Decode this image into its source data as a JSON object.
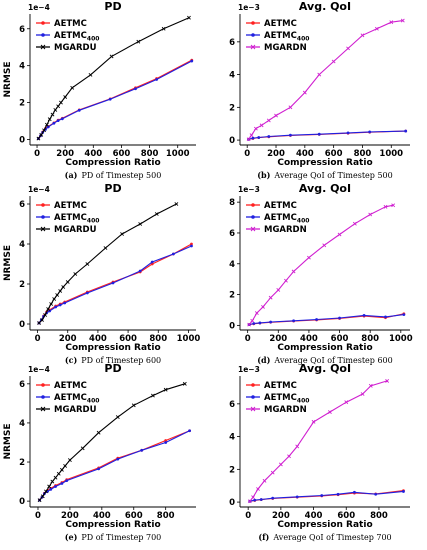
{
  "colors": {
    "aetmc": "#ff2020",
    "aetmc400": "#2020e0",
    "mgard_pd": "#000000",
    "mgard_qoi": "#d020d0"
  },
  "chart_data": [
    {
      "type": "line",
      "title": "PD",
      "multiplier": "1e−4",
      "xlabel": "Compression Ratio",
      "ylabel": "NRMSE",
      "caption_letter": "(a)",
      "caption": "PD of Timestep 500",
      "xlim": [
        -50,
        1130
      ],
      "ylim": [
        -0.3,
        6.8
      ],
      "xticks": [
        0,
        200,
        400,
        600,
        800,
        1000
      ],
      "yticks": [
        0,
        2,
        4,
        6
      ],
      "series": [
        {
          "name": "AETMC",
          "color_key": "aetmc",
          "marker": "dot",
          "x": [
            10,
            25,
            40,
            60,
            80,
            120,
            150,
            180,
            300,
            520,
            700,
            850,
            1100
          ],
          "y": [
            0.05,
            0.2,
            0.4,
            0.6,
            0.7,
            0.9,
            1.05,
            1.15,
            1.6,
            2.2,
            2.8,
            3.3,
            4.3
          ]
        },
        {
          "name": "AETMC",
          "subscript": "400",
          "color_key": "aetmc400",
          "marker": "dot",
          "x": [
            10,
            25,
            40,
            60,
            80,
            120,
            150,
            180,
            300,
            520,
            700,
            850,
            1100
          ],
          "y": [
            0.05,
            0.2,
            0.38,
            0.55,
            0.68,
            0.88,
            1.02,
            1.12,
            1.58,
            2.18,
            2.75,
            3.25,
            4.25
          ]
        },
        {
          "name": "MGARDU",
          "color_key": "mgard_pd",
          "marker": "x",
          "x": [
            10,
            30,
            50,
            70,
            90,
            110,
            130,
            150,
            170,
            200,
            250,
            380,
            530,
            720,
            900,
            1080
          ],
          "y": [
            0.05,
            0.25,
            0.5,
            0.8,
            1.1,
            1.35,
            1.6,
            1.8,
            2.0,
            2.3,
            2.8,
            3.5,
            4.5,
            5.3,
            6.0,
            6.6
          ]
        }
      ]
    },
    {
      "type": "line",
      "title": "Avg. QoI",
      "multiplier": "1e−3",
      "xlabel": "Compression Ratio",
      "ylabel": "",
      "caption_letter": "(b)",
      "caption": "Average QoI of Timestep 500",
      "xlim": [
        -50,
        1130
      ],
      "ylim": [
        -0.3,
        7.7
      ],
      "xticks": [
        0,
        200,
        400,
        600,
        800,
        1000
      ],
      "yticks": [
        0,
        2,
        4,
        6
      ],
      "series": [
        {
          "name": "AETMC",
          "color_key": "aetmc",
          "marker": "dot",
          "x": [
            10,
            40,
            80,
            150,
            300,
            500,
            700,
            850,
            1100
          ],
          "y": [
            0.05,
            0.1,
            0.15,
            0.2,
            0.28,
            0.35,
            0.42,
            0.48,
            0.55
          ]
        },
        {
          "name": "AETMC",
          "subscript": "400",
          "color_key": "aetmc400",
          "marker": "dot",
          "x": [
            10,
            40,
            80,
            150,
            300,
            500,
            700,
            850,
            1100
          ],
          "y": [
            0.05,
            0.12,
            0.16,
            0.22,
            0.3,
            0.36,
            0.44,
            0.5,
            0.55
          ]
        },
        {
          "name": "MGARDN",
          "color_key": "mgard_qoi",
          "marker": "x",
          "x": [
            10,
            30,
            60,
            100,
            150,
            200,
            300,
            400,
            500,
            600,
            700,
            800,
            900,
            1000,
            1080
          ],
          "y": [
            0.05,
            0.3,
            0.7,
            0.9,
            1.2,
            1.5,
            2.0,
            2.9,
            4.0,
            4.8,
            5.6,
            6.4,
            6.8,
            7.2,
            7.3
          ]
        }
      ]
    },
    {
      "type": "line",
      "title": "PD",
      "multiplier": "1e−4",
      "xlabel": "Compression Ratio",
      "ylabel": "NRMSE",
      "caption_letter": "(c)",
      "caption": "PD of Timestep 600",
      "xlim": [
        -50,
        1050
      ],
      "ylim": [
        -0.3,
        6.4
      ],
      "xticks": [
        0,
        200,
        400,
        600,
        800,
        1000
      ],
      "yticks": [
        0,
        2,
        4,
        6
      ],
      "series": [
        {
          "name": "AETMC",
          "color_key": "aetmc",
          "marker": "dot",
          "x": [
            10,
            25,
            40,
            60,
            80,
            120,
            150,
            180,
            330,
            500,
            680,
            760,
            900,
            1020
          ],
          "y": [
            0.05,
            0.2,
            0.4,
            0.6,
            0.7,
            0.9,
            1.0,
            1.1,
            1.6,
            2.1,
            2.6,
            3.0,
            3.5,
            4.0
          ]
        },
        {
          "name": "AETMC",
          "subscript": "400",
          "color_key": "aetmc400",
          "marker": "dot",
          "x": [
            10,
            25,
            40,
            60,
            80,
            120,
            150,
            180,
            330,
            500,
            680,
            760,
            900,
            1020
          ],
          "y": [
            0.05,
            0.2,
            0.38,
            0.55,
            0.65,
            0.85,
            0.95,
            1.05,
            1.55,
            2.05,
            2.65,
            3.1,
            3.5,
            3.9
          ]
        },
        {
          "name": "MGARDU",
          "color_key": "mgard_pd",
          "marker": "x",
          "x": [
            10,
            30,
            50,
            70,
            90,
            110,
            130,
            150,
            170,
            200,
            250,
            330,
            450,
            560,
            680,
            790,
            920
          ],
          "y": [
            0.05,
            0.2,
            0.45,
            0.75,
            1.0,
            1.25,
            1.45,
            1.65,
            1.85,
            2.1,
            2.5,
            3.0,
            3.8,
            4.5,
            5.0,
            5.5,
            6.0
          ]
        }
      ]
    },
    {
      "type": "line",
      "title": "Avg. QoI",
      "multiplier": "1e−3",
      "xlabel": "Compression Ratio",
      "ylabel": "",
      "caption_letter": "(d)",
      "caption": "Average QoI of Timestep 600",
      "xlim": [
        -50,
        1060
      ],
      "ylim": [
        -0.3,
        8.4
      ],
      "xticks": [
        0,
        200,
        400,
        600,
        800,
        1000
      ],
      "yticks": [
        0,
        2,
        4,
        6,
        8
      ],
      "series": [
        {
          "name": "AETMC",
          "color_key": "aetmc",
          "marker": "dot",
          "x": [
            10,
            40,
            80,
            150,
            300,
            450,
            600,
            760,
            900,
            1020
          ],
          "y": [
            0.05,
            0.1,
            0.15,
            0.2,
            0.28,
            0.35,
            0.45,
            0.6,
            0.5,
            0.75
          ]
        },
        {
          "name": "AETMC",
          "subscript": "400",
          "color_key": "aetmc400",
          "marker": "dot",
          "x": [
            10,
            40,
            80,
            150,
            300,
            450,
            600,
            760,
            900,
            1020
          ],
          "y": [
            0.05,
            0.12,
            0.16,
            0.22,
            0.3,
            0.38,
            0.48,
            0.65,
            0.55,
            0.7
          ]
        },
        {
          "name": "MGARDN",
          "color_key": "mgard_qoi",
          "marker": "x",
          "x": [
            10,
            30,
            60,
            100,
            150,
            200,
            250,
            300,
            400,
            500,
            600,
            700,
            800,
            900,
            950
          ],
          "y": [
            0.05,
            0.3,
            0.8,
            1.2,
            1.8,
            2.3,
            2.9,
            3.5,
            4.4,
            5.2,
            5.9,
            6.6,
            7.2,
            7.7,
            7.8
          ]
        }
      ]
    },
    {
      "type": "line",
      "title": "PD",
      "multiplier": "1e−4",
      "xlabel": "Compression Ratio",
      "ylabel": "NRMSE",
      "caption_letter": "(e)",
      "caption": "PD of Timestep 700",
      "xlim": [
        -50,
        990
      ],
      "ylim": [
        -0.3,
        6.4
      ],
      "xticks": [
        0,
        200,
        400,
        600,
        800
      ],
      "yticks": [
        0,
        2,
        4,
        6
      ],
      "series": [
        {
          "name": "AETMC",
          "color_key": "aetmc",
          "marker": "dot",
          "x": [
            10,
            25,
            40,
            60,
            80,
            110,
            150,
            180,
            380,
            500,
            650,
            800,
            950
          ],
          "y": [
            0.05,
            0.2,
            0.4,
            0.55,
            0.65,
            0.8,
            0.95,
            1.1,
            1.7,
            2.2,
            2.6,
            3.1,
            3.6
          ]
        },
        {
          "name": "AETMC",
          "subscript": "400",
          "color_key": "aetmc400",
          "marker": "dot",
          "x": [
            10,
            25,
            40,
            60,
            80,
            110,
            150,
            180,
            380,
            500,
            650,
            800,
            950
          ],
          "y": [
            0.05,
            0.2,
            0.38,
            0.5,
            0.6,
            0.75,
            0.9,
            1.05,
            1.65,
            2.15,
            2.6,
            3.0,
            3.6
          ]
        },
        {
          "name": "MGARDU",
          "color_key": "mgard_pd",
          "marker": "x",
          "x": [
            10,
            30,
            50,
            70,
            90,
            110,
            130,
            150,
            170,
            200,
            280,
            380,
            500,
            600,
            720,
            800,
            920
          ],
          "y": [
            0.05,
            0.25,
            0.5,
            0.75,
            1.0,
            1.2,
            1.4,
            1.6,
            1.8,
            2.1,
            2.7,
            3.5,
            4.3,
            4.9,
            5.4,
            5.7,
            6.0
          ]
        }
      ]
    },
    {
      "type": "line",
      "title": "Avg. QoI",
      "multiplier": "1e−3",
      "xlabel": "Compression Ratio",
      "ylabel": "",
      "caption_letter": "(f)",
      "caption": "Average QoI of Timestep 700",
      "xlim": [
        -50,
        990
      ],
      "ylim": [
        -0.3,
        7.7
      ],
      "xticks": [
        0,
        200,
        400,
        600,
        800
      ],
      "yticks": [
        0,
        2,
        4,
        6
      ],
      "series": [
        {
          "name": "AETMC",
          "color_key": "aetmc",
          "marker": "dot",
          "x": [
            10,
            40,
            80,
            150,
            300,
            450,
            550,
            650,
            780,
            950
          ],
          "y": [
            0.05,
            0.1,
            0.15,
            0.22,
            0.3,
            0.38,
            0.45,
            0.55,
            0.5,
            0.7
          ]
        },
        {
          "name": "AETMC",
          "subscript": "400",
          "color_key": "aetmc400",
          "marker": "dot",
          "x": [
            10,
            40,
            80,
            150,
            300,
            450,
            550,
            650,
            780,
            950
          ],
          "y": [
            0.05,
            0.12,
            0.16,
            0.24,
            0.32,
            0.4,
            0.48,
            0.6,
            0.48,
            0.65
          ]
        },
        {
          "name": "MGARDN",
          "color_key": "mgard_qoi",
          "marker": "x",
          "x": [
            10,
            30,
            60,
            100,
            150,
            200,
            250,
            300,
            400,
            500,
            600,
            700,
            750,
            850
          ],
          "y": [
            0.05,
            0.3,
            0.8,
            1.3,
            1.8,
            2.3,
            2.8,
            3.4,
            4.9,
            5.5,
            6.1,
            6.6,
            7.1,
            7.4
          ]
        }
      ]
    }
  ]
}
